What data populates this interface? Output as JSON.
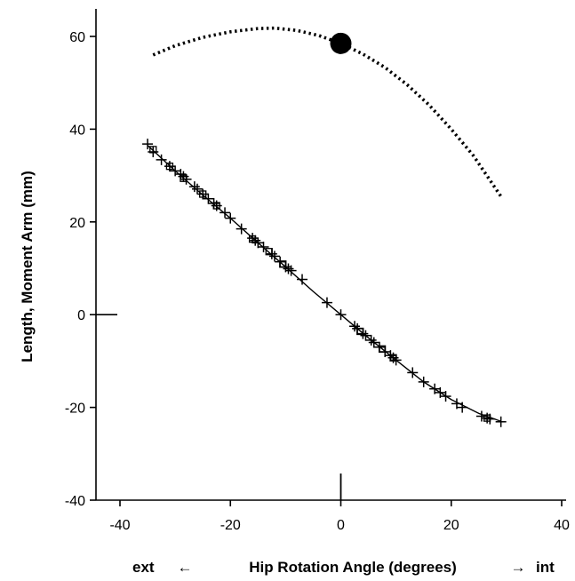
{
  "chart_data": {
    "type": "line",
    "title": "",
    "xlabel": "Hip Rotation Angle (degrees)",
    "xlabel_left": "ext",
    "xlabel_right": "int",
    "arrow_left": "←",
    "arrow_right": "→",
    "ylabel": "Length, Moment Arm (mm)",
    "xlim": [
      -42,
      40
    ],
    "ylim": [
      -40,
      65
    ],
    "xticks": [
      -40,
      -20,
      0,
      20,
      40
    ],
    "yticks": [
      -40,
      -20,
      0,
      20,
      40,
      60
    ],
    "grid": false,
    "colors": {
      "line": "#000000",
      "background": "#ffffff"
    },
    "series": [
      {
        "style": "dotted",
        "x": [
          -34,
          -30,
          -25,
          -20,
          -15,
          -12,
          -8,
          -4,
          0,
          4,
          8,
          12,
          16,
          20,
          24,
          29
        ],
        "y": [
          56.0,
          58.0,
          59.8,
          61.0,
          61.7,
          61.8,
          61.3,
          60.2,
          58.5,
          56.2,
          53.3,
          49.6,
          45.2,
          40.0,
          34.3,
          25.5
        ]
      },
      {
        "style": "solid",
        "x": [
          -35,
          -30,
          -25,
          -20,
          -15,
          -10,
          -5,
          0,
          5,
          10,
          15,
          20,
          25,
          29
        ],
        "y": [
          36.5,
          31.0,
          25.8,
          20.8,
          15.5,
          10.3,
          5.0,
          0.0,
          -5.0,
          -9.8,
          -14.5,
          -18.3,
          -21.3,
          -23.0
        ]
      },
      {
        "marker": "plus",
        "x": [
          -35,
          -34,
          -32.5,
          -31,
          -30,
          -29,
          -28.5,
          -28,
          -26.5,
          -26,
          -25,
          -24,
          -23,
          -22.5,
          -21,
          -20,
          -18,
          -16,
          -15.5,
          -15,
          -14,
          -12.5,
          -12,
          -11,
          -10,
          -9.5,
          -9,
          -7,
          -2.5,
          0,
          2.5,
          3,
          4,
          4.5,
          5.5,
          6,
          7,
          8,
          9,
          9.5,
          10,
          13,
          15,
          17,
          18,
          19,
          21,
          22,
          25.5,
          26.5,
          27,
          29
        ],
        "y": [
          36.8,
          35.1,
          33.4,
          32.0,
          31.0,
          30.3,
          29.8,
          29.2,
          27.6,
          27.1,
          26.0,
          25.0,
          24.0,
          23.5,
          22.0,
          20.8,
          18.5,
          16.5,
          16.0,
          15.5,
          14.6,
          13.1,
          12.6,
          11.4,
          10.3,
          9.9,
          9.5,
          7.6,
          2.6,
          0.0,
          -2.5,
          -3.0,
          -4.1,
          -4.5,
          -5.5,
          -6.0,
          -7.0,
          -8.0,
          -8.8,
          -9.3,
          -9.8,
          -12.5,
          -14.5,
          -16.0,
          -16.8,
          -17.6,
          -19.2,
          -20.0,
          -21.9,
          -22.3,
          -22.5,
          -23.1
        ]
      },
      {
        "marker": "square",
        "x": [
          -34,
          -31,
          -28.5,
          -25,
          -22.5,
          -16,
          -13,
          -10.5,
          3.5,
          7.5,
          9.5,
          26.5
        ],
        "y": [
          35.6,
          32.0,
          29.4,
          26.0,
          23.5,
          16.3,
          13.6,
          10.9,
          -3.6,
          -7.4,
          -9.3,
          -22.3
        ]
      },
      {
        "marker": "circle",
        "x": [
          0
        ],
        "y": [
          58.5
        ]
      }
    ],
    "axis_marks": [
      {
        "axis": "y",
        "value": 0,
        "note": "short horizontal line at y=0 from x axis edge"
      },
      {
        "axis": "x",
        "value": 0,
        "note": "short vertical line at x=0 above x axis"
      }
    ]
  }
}
